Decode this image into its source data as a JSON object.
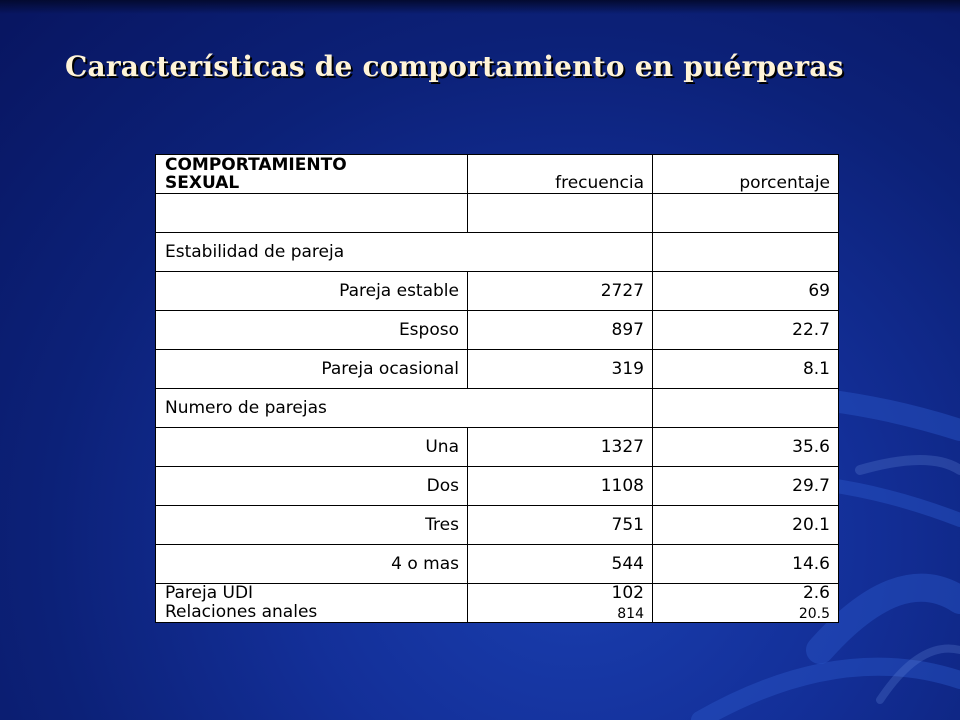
{
  "slide": {
    "title": "Características de comportamiento en puérperas",
    "colors": {
      "background": "#0c2178",
      "title": "#fff4d8",
      "table_bg": "#ffffff"
    }
  },
  "table": {
    "header": {
      "col1_line1": "COMPORTAMIENTO",
      "col1_line2": "SEXUAL",
      "col2": "frecuencia",
      "col3": "porcentaje"
    },
    "rows": [
      {
        "label": "Estabilidad de pareja"
      },
      {
        "label": "Pareja estable",
        "frecuencia": "2727",
        "porcentaje": "69"
      },
      {
        "label": "Esposo",
        "frecuencia": "897",
        "porcentaje": "22.7"
      },
      {
        "label": "Pareja ocasional",
        "frecuencia": "319",
        "porcentaje": "8.1"
      },
      {
        "label": "Numero de parejas"
      },
      {
        "label": "Una",
        "frecuencia": "1327",
        "porcentaje": "35.6"
      },
      {
        "label": "Dos",
        "frecuencia": "1108",
        "porcentaje": "29.7"
      },
      {
        "label": "Tres",
        "frecuencia": "751",
        "porcentaje": "20.1"
      },
      {
        "label": "4 o mas",
        "frecuencia": "544",
        "porcentaje": "14.6"
      }
    ],
    "last_row": {
      "label1": "Pareja UDI",
      "label2": "Relaciones anales",
      "frecuencia1": "102",
      "frecuencia2": "814",
      "porcentaje1": "2.6",
      "porcentaje2": "20.5"
    }
  }
}
